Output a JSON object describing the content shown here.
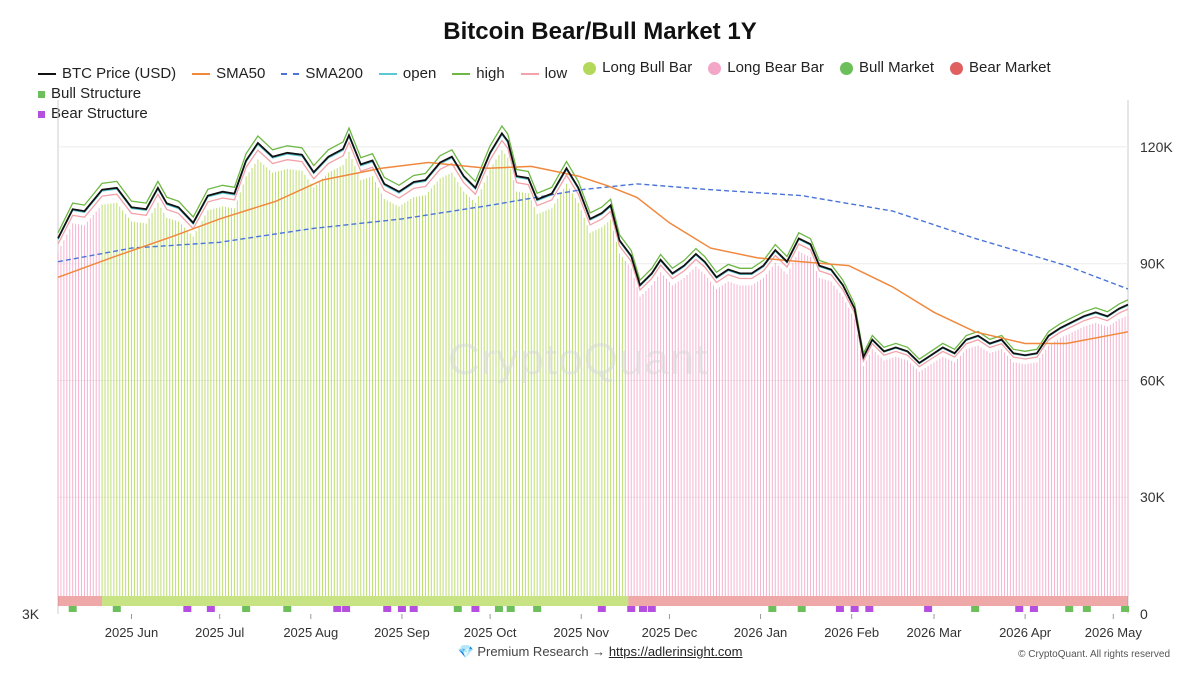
{
  "title": "Bitcoin Bear/Bull Market 1Y",
  "legend": [
    {
      "label": "BTC Price (USD)",
      "kind": "line",
      "color": "#111111"
    },
    {
      "label": "SMA50",
      "kind": "line",
      "color": "#f0883e"
    },
    {
      "label": "SMA200",
      "kind": "dash",
      "color": "#4a74d8"
    },
    {
      "label": "open",
      "kind": "line",
      "color": "#5cc8d6"
    },
    {
      "label": "high",
      "kind": "line",
      "color": "#6db845"
    },
    {
      "label": "low",
      "kind": "line",
      "color": "#f2a2a8"
    },
    {
      "label": "Long Bull Bar",
      "kind": "dot",
      "color": "#b4d95a"
    },
    {
      "label": "Long Bear Bar",
      "kind": "dot",
      "color": "#f4a6c8"
    },
    {
      "label": "Bull Market",
      "kind": "dot",
      "color": "#6cbf5b"
    },
    {
      "label": "Bear Market",
      "kind": "dot",
      "color": "#e06060"
    },
    {
      "label": "Bull Structure",
      "kind": "square",
      "color": "#6cbf5b"
    },
    {
      "label": "Bear Structure",
      "kind": "square",
      "color": "#b44fe0"
    }
  ],
  "watermark": "CryptoQuant",
  "footer": {
    "icon": "💎",
    "text": "Premium Research →",
    "link": "https://adlerinsight.com",
    "copyright": "© CryptoQuant. All rights reserved"
  },
  "chart_data": {
    "type": "line",
    "colors": {
      "price": "#111111",
      "sma50": "#f0883e",
      "sma200": "#4a74d8",
      "open": "#5cc8d6",
      "high": "#6db845",
      "low": "#f2a2a8",
      "bull_bar": "#b4d95a",
      "bear_bar": "#f4a6c8",
      "bull_market": "#6cbf5b",
      "bear_market": "#e06060",
      "bear_structure": "#b44fe0"
    },
    "left_axis": {
      "ticks": [
        {
          "value": 0,
          "label": "3K"
        }
      ]
    },
    "right_axis": {
      "ylim": [
        0,
        130000
      ],
      "ticks": [
        {
          "value": 0,
          "label": "0"
        },
        {
          "value": 30000,
          "label": "30K"
        },
        {
          "value": 60000,
          "label": "60K"
        },
        {
          "value": 90000,
          "label": "90K"
        },
        {
          "value": 120000,
          "label": "120K"
        }
      ]
    },
    "x_start": "2025-05-07",
    "x_end": "2026-05-06",
    "x_ticks": [
      {
        "date": "2025-06-01",
        "label": "2025 Jun"
      },
      {
        "date": "2025-07-01",
        "label": "2025 Jul"
      },
      {
        "date": "2025-08-01",
        "label": "2025 Aug"
      },
      {
        "date": "2025-09-01",
        "label": "2025 Sep"
      },
      {
        "date": "2025-10-01",
        "label": "2025 Oct"
      },
      {
        "date": "2025-11-01",
        "label": "2025 Nov"
      },
      {
        "date": "2025-12-01",
        "label": "2025 Dec"
      },
      {
        "date": "2026-01-01",
        "label": "2026 Jan"
      },
      {
        "date": "2026-02-01",
        "label": "2026 Feb"
      },
      {
        "date": "2026-03-01",
        "label": "2026 Mar"
      },
      {
        "date": "2026-04-01",
        "label": "2026 Apr"
      },
      {
        "date": "2026-05-01",
        "label": "2026 May"
      }
    ],
    "price": [
      [
        "2025-05-07",
        96500
      ],
      [
        "2025-05-12",
        104000
      ],
      [
        "2025-05-16",
        103500
      ],
      [
        "2025-05-22",
        109000
      ],
      [
        "2025-05-27",
        109500
      ],
      [
        "2025-06-01",
        104500
      ],
      [
        "2025-06-06",
        104000
      ],
      [
        "2025-06-10",
        109500
      ],
      [
        "2025-06-13",
        105500
      ],
      [
        "2025-06-17",
        104500
      ],
      [
        "2025-06-22",
        100500
      ],
      [
        "2025-06-27",
        107500
      ],
      [
        "2025-07-02",
        108500
      ],
      [
        "2025-07-06",
        108000
      ],
      [
        "2025-07-10",
        116500
      ],
      [
        "2025-07-14",
        121000
      ],
      [
        "2025-07-19",
        117500
      ],
      [
        "2025-07-24",
        118500
      ],
      [
        "2025-07-29",
        118000
      ],
      [
        "2025-08-02",
        113500
      ],
      [
        "2025-08-07",
        117500
      ],
      [
        "2025-08-12",
        119500
      ],
      [
        "2025-08-14",
        123000
      ],
      [
        "2025-08-18",
        115500
      ],
      [
        "2025-08-22",
        116500
      ],
      [
        "2025-08-26",
        110500
      ],
      [
        "2025-08-31",
        108500
      ],
      [
        "2025-09-05",
        111000
      ],
      [
        "2025-09-09",
        111500
      ],
      [
        "2025-09-14",
        116000
      ],
      [
        "2025-09-18",
        117500
      ],
      [
        "2025-09-22",
        112500
      ],
      [
        "2025-09-26",
        109500
      ],
      [
        "2025-10-01",
        118500
      ],
      [
        "2025-10-05",
        123500
      ],
      [
        "2025-10-07",
        121500
      ],
      [
        "2025-10-10",
        112500
      ],
      [
        "2025-10-14",
        112000
      ],
      [
        "2025-10-17",
        106500
      ],
      [
        "2025-10-22",
        108000
      ],
      [
        "2025-10-27",
        114500
      ],
      [
        "2025-10-31",
        109500
      ],
      [
        "2025-11-04",
        101500
      ],
      [
        "2025-11-08",
        103000
      ],
      [
        "2025-11-11",
        105000
      ],
      [
        "2025-11-14",
        96000
      ],
      [
        "2025-11-18",
        92000
      ],
      [
        "2025-11-21",
        84500
      ],
      [
        "2025-11-25",
        87500
      ],
      [
        "2025-11-28",
        91000
      ],
      [
        "2025-12-02",
        87500
      ],
      [
        "2025-12-06",
        89500
      ],
      [
        "2025-12-10",
        92500
      ],
      [
        "2025-12-13",
        90500
      ],
      [
        "2025-12-17",
        86500
      ],
      [
        "2025-12-21",
        88500
      ],
      [
        "2025-12-25",
        87500
      ],
      [
        "2025-12-29",
        87500
      ],
      [
        "2026-01-02",
        89500
      ],
      [
        "2026-01-06",
        93500
      ],
      [
        "2026-01-10",
        90500
      ],
      [
        "2026-01-14",
        96500
      ],
      [
        "2026-01-18",
        95000
      ],
      [
        "2026-01-21",
        89500
      ],
      [
        "2026-01-25",
        88500
      ],
      [
        "2026-01-29",
        84500
      ],
      [
        "2026-02-02",
        78500
      ],
      [
        "2026-02-05",
        66000
      ],
      [
        "2026-02-08",
        70500
      ],
      [
        "2026-02-12",
        67500
      ],
      [
        "2026-02-16",
        68500
      ],
      [
        "2026-02-20",
        67500
      ],
      [
        "2026-02-24",
        64500
      ],
      [
        "2026-02-28",
        66500
      ],
      [
        "2026-03-04",
        68500
      ],
      [
        "2026-03-08",
        67000
      ],
      [
        "2026-03-12",
        70500
      ],
      [
        "2026-03-16",
        71500
      ],
      [
        "2026-03-20",
        69500
      ],
      [
        "2026-03-24",
        70500
      ],
      [
        "2026-03-28",
        67000
      ],
      [
        "2026-04-01",
        66500
      ],
      [
        "2026-04-05",
        67000
      ],
      [
        "2026-04-09",
        71500
      ],
      [
        "2026-04-13",
        73500
      ],
      [
        "2026-04-17",
        75000
      ],
      [
        "2026-04-21",
        76500
      ],
      [
        "2026-04-25",
        77500
      ],
      [
        "2026-04-29",
        76500
      ],
      [
        "2026-05-03",
        78500
      ],
      [
        "2026-05-06",
        79500
      ]
    ],
    "sma50": [
      [
        "2025-05-07",
        86500
      ],
      [
        "2025-05-25",
        91500
      ],
      [
        "2025-06-15",
        97000
      ],
      [
        "2025-07-01",
        101500
      ],
      [
        "2025-07-20",
        106000
      ],
      [
        "2025-08-05",
        111500
      ],
      [
        "2025-08-25",
        114500
      ],
      [
        "2025-09-10",
        116000
      ],
      [
        "2025-09-30",
        114500
      ],
      [
        "2025-10-15",
        115000
      ],
      [
        "2025-10-31",
        112500
      ],
      [
        "2025-11-10",
        110000
      ],
      [
        "2025-11-20",
        107000
      ],
      [
        "2025-12-01",
        100500
      ],
      [
        "2025-12-15",
        94000
      ],
      [
        "2025-12-31",
        91500
      ],
      [
        "2026-01-15",
        90500
      ],
      [
        "2026-01-31",
        89500
      ],
      [
        "2026-02-15",
        84000
      ],
      [
        "2026-03-01",
        77500
      ],
      [
        "2026-03-15",
        72500
      ],
      [
        "2026-04-01",
        69500
      ],
      [
        "2026-04-15",
        69500
      ],
      [
        "2026-05-06",
        72500
      ]
    ],
    "sma200": [
      [
        "2025-05-07",
        90500
      ],
      [
        "2025-06-01",
        94000
      ],
      [
        "2025-07-01",
        95500
      ],
      [
        "2025-08-01",
        99000
      ],
      [
        "2025-09-01",
        101500
      ],
      [
        "2025-10-01",
        105000
      ],
      [
        "2025-11-01",
        109000
      ],
      [
        "2025-11-20",
        110500
      ],
      [
        "2025-12-15",
        109000
      ],
      [
        "2026-01-15",
        107500
      ],
      [
        "2026-02-15",
        103500
      ],
      [
        "2026-03-15",
        96500
      ],
      [
        "2026-04-15",
        89500
      ],
      [
        "2026-05-06",
        83500
      ]
    ],
    "regimes": [
      {
        "start": "2025-05-07",
        "end": "2025-05-22",
        "type": "bear"
      },
      {
        "start": "2025-05-22",
        "end": "2025-11-17",
        "type": "bull"
      },
      {
        "start": "2025-11-17",
        "end": "2026-05-06",
        "type": "bear"
      }
    ],
    "structure_marks": [
      {
        "date": "2025-05-12",
        "type": "bull"
      },
      {
        "date": "2025-05-27",
        "type": "bull"
      },
      {
        "date": "2025-06-20",
        "type": "bear"
      },
      {
        "date": "2025-06-28",
        "type": "bear"
      },
      {
        "date": "2025-07-10",
        "type": "bull"
      },
      {
        "date": "2025-07-24",
        "type": "bull"
      },
      {
        "date": "2025-08-10",
        "type": "bear"
      },
      {
        "date": "2025-08-13",
        "type": "bear"
      },
      {
        "date": "2025-08-27",
        "type": "bear"
      },
      {
        "date": "2025-09-01",
        "type": "bear"
      },
      {
        "date": "2025-09-05",
        "type": "bear"
      },
      {
        "date": "2025-09-20",
        "type": "bull"
      },
      {
        "date": "2025-09-26",
        "type": "bear"
      },
      {
        "date": "2025-10-04",
        "type": "bull"
      },
      {
        "date": "2025-10-08",
        "type": "bull"
      },
      {
        "date": "2025-10-17",
        "type": "bull"
      },
      {
        "date": "2025-11-08",
        "type": "bear"
      },
      {
        "date": "2025-11-18",
        "type": "bear"
      },
      {
        "date": "2025-11-22",
        "type": "bear"
      },
      {
        "date": "2025-11-25",
        "type": "bear"
      },
      {
        "date": "2026-01-05",
        "type": "bull"
      },
      {
        "date": "2026-01-15",
        "type": "bull"
      },
      {
        "date": "2026-01-28",
        "type": "bear"
      },
      {
        "date": "2026-02-02",
        "type": "bear"
      },
      {
        "date": "2026-02-07",
        "type": "bear"
      },
      {
        "date": "2026-02-27",
        "type": "bear"
      },
      {
        "date": "2026-03-15",
        "type": "bull"
      },
      {
        "date": "2026-03-30",
        "type": "bear"
      },
      {
        "date": "2026-04-04",
        "type": "bear"
      },
      {
        "date": "2026-04-16",
        "type": "bull"
      },
      {
        "date": "2026-04-22",
        "type": "bull"
      },
      {
        "date": "2026-05-05",
        "type": "bull"
      }
    ]
  }
}
